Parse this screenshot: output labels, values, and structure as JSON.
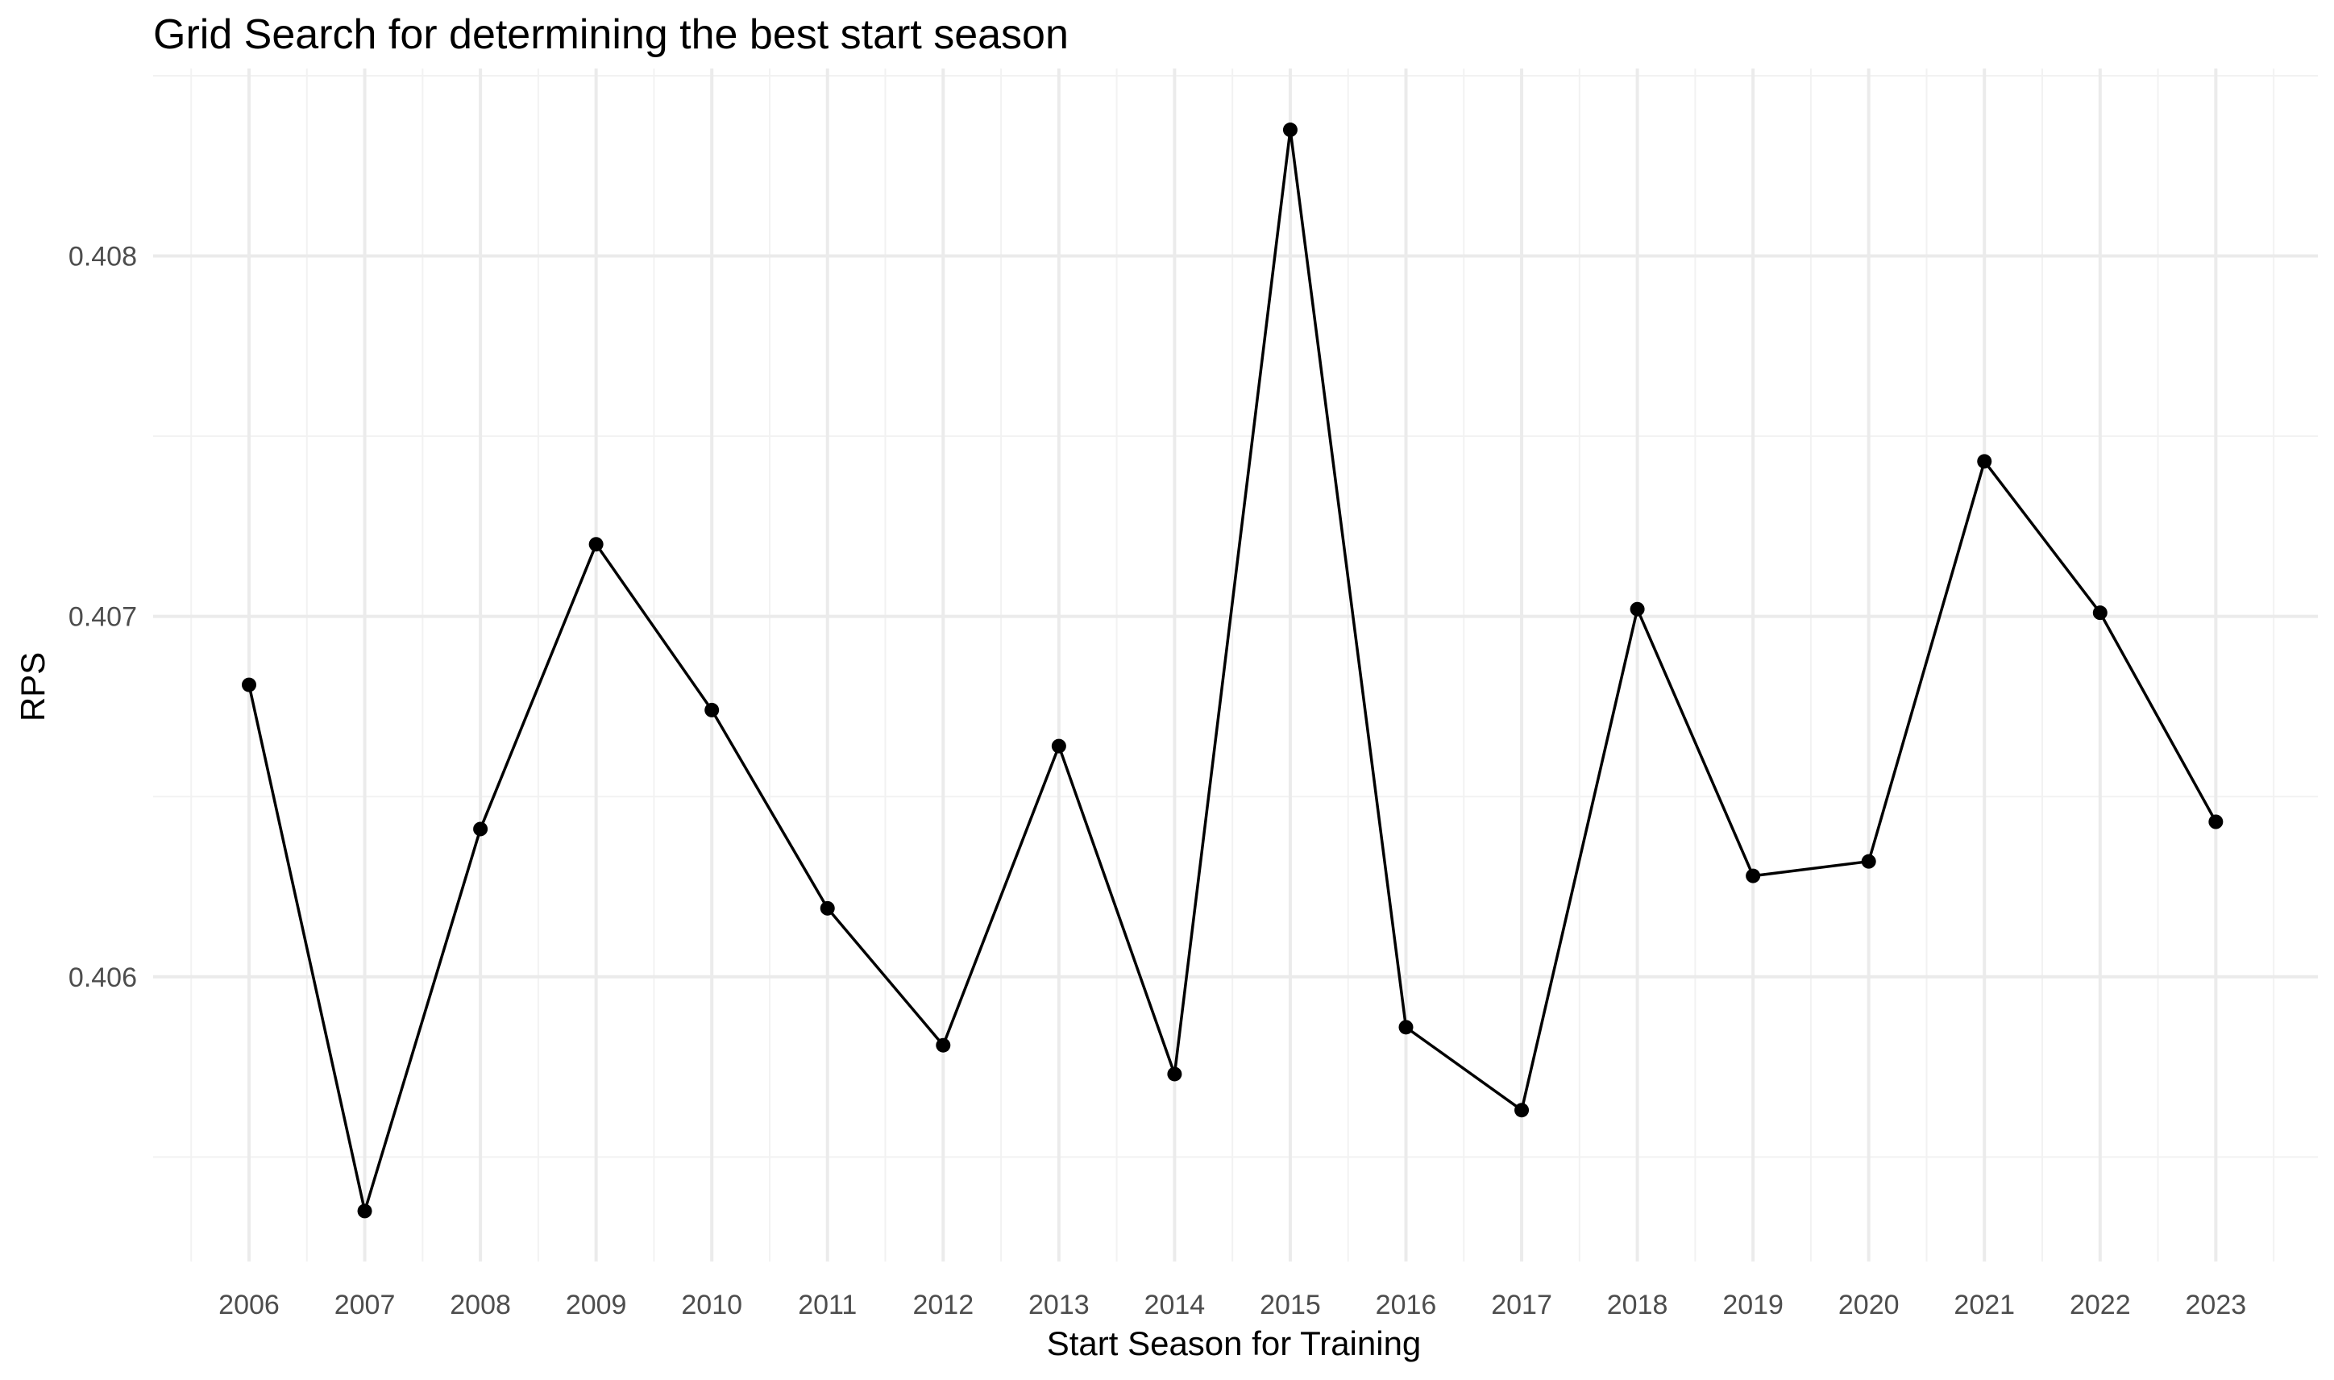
{
  "chart_data": {
    "type": "line",
    "title": "Grid Search for determining the best start season",
    "xlabel": "Start Season for Training",
    "ylabel": "RPS",
    "x": [
      "2006",
      "2007",
      "2008",
      "2009",
      "2010",
      "2011",
      "2012",
      "2013",
      "2014",
      "2015",
      "2016",
      "2017",
      "2018",
      "2019",
      "2020",
      "2021",
      "2022",
      "2023"
    ],
    "series": [
      {
        "values": [
          0.40681,
          0.40535,
          0.40641,
          0.4072,
          0.40674,
          0.40619,
          0.40581,
          0.40664,
          0.40573,
          0.40835,
          0.40586,
          0.40563,
          0.40702,
          0.40628,
          0.40632,
          0.40743,
          0.40701,
          0.40643
        ],
        "color": "#000000"
      }
    ],
    "y_ticks": [
      0.406,
      0.407,
      0.408
    ],
    "y_tick_labels": [
      "0.406",
      "0.407",
      "0.408"
    ],
    "ylim": [
      0.40521,
      0.40852
    ],
    "grid": true,
    "legend": "none"
  }
}
